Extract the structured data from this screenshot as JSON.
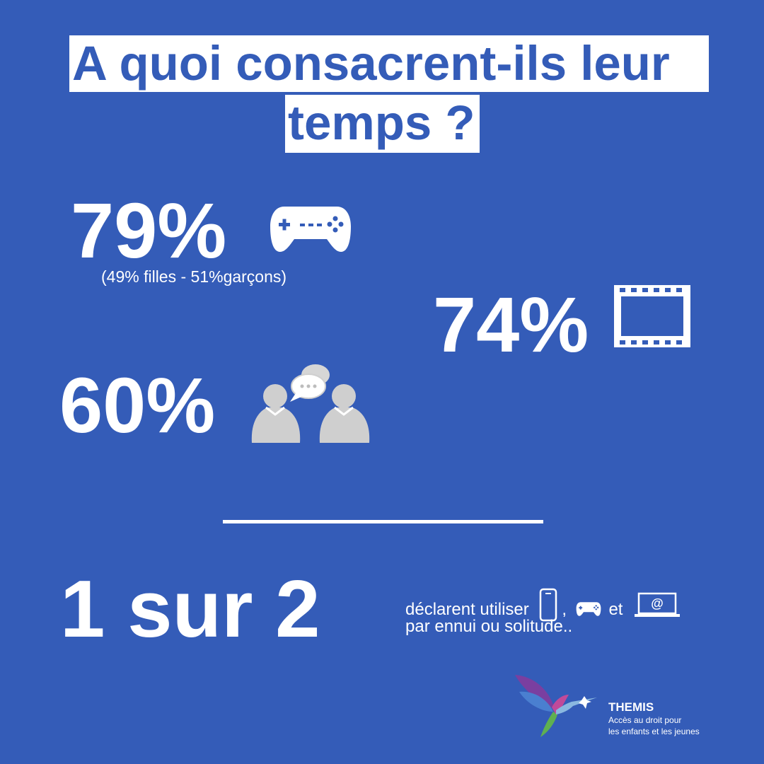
{
  "title": {
    "line1": "A quoi consacrent-ils leur",
    "line2": "temps ?"
  },
  "stats": [
    {
      "value": "79%",
      "icon": "gamepad-icon",
      "note": "(49% filles - 51%garçons)"
    },
    {
      "value": "74%",
      "icon": "film-strip-icon"
    },
    {
      "value": "60%",
      "icon": "people-chat-icon"
    }
  ],
  "summary": {
    "value": "1 sur 2",
    "text_before_icons": "déclarent utiliser",
    "separator": ",",
    "conjunction": "et",
    "line2": "par ennui ou solitude..",
    "icons": [
      "smartphone-icon",
      "gamepad-icon",
      "laptop-email-icon"
    ]
  },
  "logo": {
    "name": "THEMIS",
    "tagline_line1": "Accès au droit pour",
    "tagline_line2": "les enfants et les jeunes"
  },
  "colors": {
    "background": "#345cb8",
    "foreground": "#ffffff",
    "icon_gray": "#cfcfcf"
  }
}
